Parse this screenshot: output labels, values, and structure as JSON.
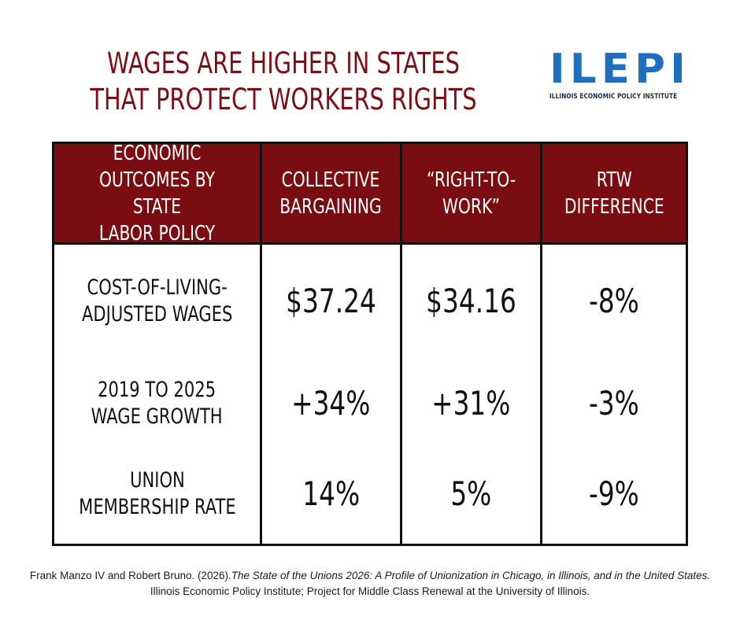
{
  "title": {
    "line1": "WAGES ARE HIGHER IN STATES",
    "line2": "THAT PROTECT WORKERS RIGHTS"
  },
  "logo": {
    "mark": "ILEPI",
    "subtitle": "ILLINOIS ECONOMIC POLICY INSTITUTE"
  },
  "colors": {
    "title": "#7b0f14",
    "header_bg": "#7a0d12",
    "logo": "#1e6fc0"
  },
  "table": {
    "headers": [
      "ECONOMIC\nOUTCOMES BY STATE\nLABOR POLICY",
      "COLLECTIVE\nBARGAINING",
      "“RIGHT-TO-\nWORK”",
      "RTW\nDIFFERENCE"
    ],
    "rows": [
      {
        "label": "COST-OF-LIVING-\nADJUSTED WAGES",
        "collective": "$37.24",
        "rtw": "$34.16",
        "diff": "-8%"
      },
      {
        "label": "2019 TO 2025\nWAGE GROWTH",
        "collective": "+34%",
        "rtw": "+31%",
        "diff": "-3%"
      },
      {
        "label": "UNION\nMEMBERSHIP RATE",
        "collective": "14%",
        "rtw": "5%",
        "diff": "-9%"
      }
    ]
  },
  "citation": {
    "part1": "Frank Manzo IV and Robert Bruno. (2026).",
    "title_italic": "The State of the Unions 2026: A Profile of Unionization in Chicago, in Illinois, and in the United States.",
    "part2": " Illinois Economic Policy Institute; Project for Middle Class Renewal at the University of Illinois."
  }
}
